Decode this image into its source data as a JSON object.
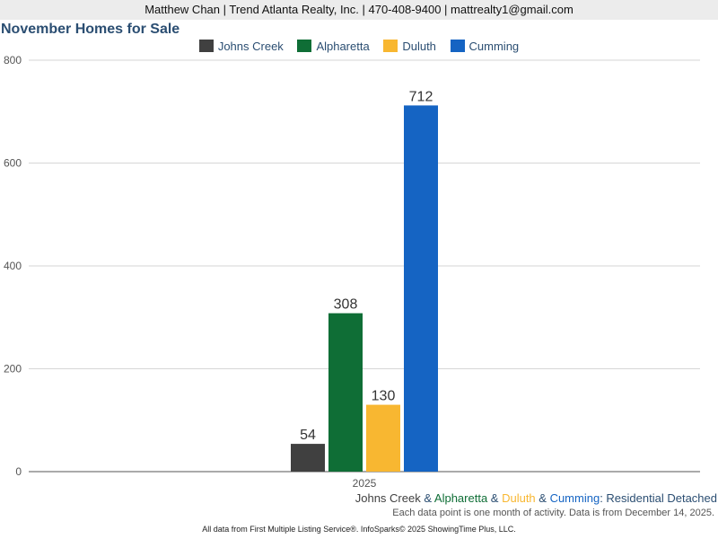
{
  "header": {
    "contact": "Matthew Chan | Trend Atlanta Realty, Inc. | 470-408-9400 | mattrealty1@gmail.com"
  },
  "colors": {
    "johns_creek": "#404040",
    "alpharetta": "#0f6e36",
    "duluth": "#f8b731",
    "cumming": "#1564c3",
    "title": "#2b4e72"
  },
  "chart_data": {
    "type": "bar",
    "title": "November Homes for Sale",
    "categories": [
      "2025"
    ],
    "series": [
      {
        "name": "Johns Creek",
        "values": [
          54
        ]
      },
      {
        "name": "Alpharetta",
        "values": [
          308
        ]
      },
      {
        "name": "Duluth",
        "values": [
          130
        ]
      },
      {
        "name": "Cumming",
        "values": [
          712
        ]
      }
    ],
    "ylim": [
      0,
      800
    ],
    "yticks": [
      0,
      200,
      400,
      600,
      800
    ],
    "grid": true,
    "legend_position": "top-center",
    "subtitle": {
      "johns_creek": "Johns Creek",
      "sep1": " & ",
      "alpharetta": "Alpharetta",
      "sep2": " & ",
      "duluth": "Duluth",
      "sep3": " & ",
      "cumming": "Cumming",
      "suffix": ": Residential Detached"
    },
    "note": "Each data point is one month of activity. Data is from December 14, 2025."
  },
  "footer": {
    "source": "All data from First Multiple Listing Service®. InfoSparks© 2025 ShowingTime Plus, LLC."
  }
}
